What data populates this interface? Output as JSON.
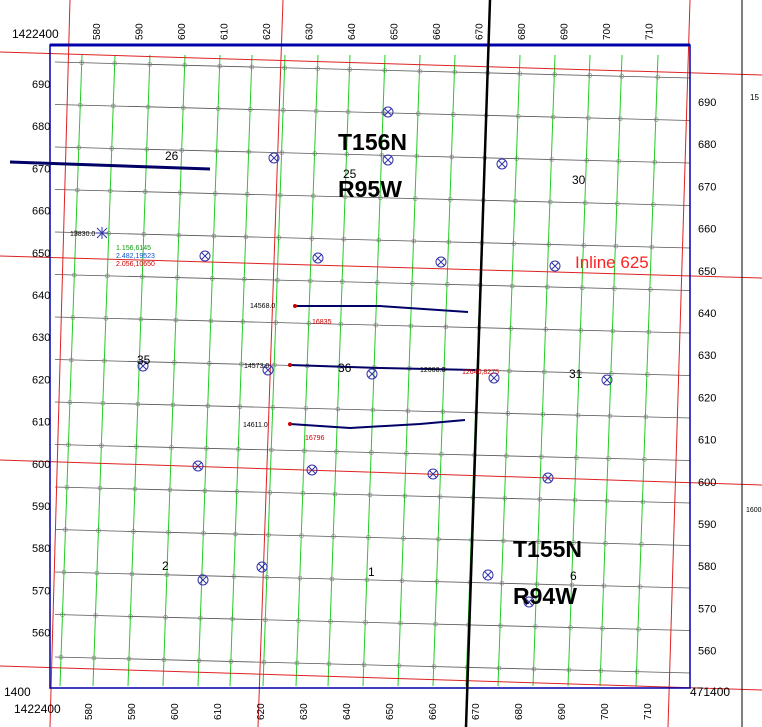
{
  "corner_labels": {
    "top_left": "1422400",
    "bottom_left_y": "1400",
    "bottom_left_x": "1422400",
    "bottom_right": "471400"
  },
  "top_ticks": [
    "580",
    "590",
    "600",
    "610",
    "620",
    "630",
    "640",
    "650",
    "660",
    "670",
    "680",
    "690",
    "700",
    "710"
  ],
  "bottom_ticks": [
    "580",
    "590",
    "600",
    "610",
    "620",
    "630",
    "640",
    "650",
    "660",
    "670",
    "680",
    "690",
    "700",
    "710"
  ],
  "left_ticks": [
    "690",
    "680",
    "670",
    "660",
    "650",
    "640",
    "630",
    "620",
    "610",
    "600",
    "590",
    "580",
    "570",
    "560"
  ],
  "right_ticks": [
    "690",
    "680",
    "670",
    "660",
    "650",
    "640",
    "630",
    "620",
    "610",
    "600",
    "590",
    "580",
    "570",
    "560"
  ],
  "edge_fragments": {
    "right_top": "15",
    "right_middle": "1600"
  },
  "sections": [
    "26",
    "25",
    "30",
    "35",
    "36",
    "31",
    "2",
    "1",
    "6"
  ],
  "townships": [
    {
      "t": "T156N",
      "r": "R95W"
    },
    {
      "t": "T155N",
      "r": "R94W"
    }
  ],
  "inline_label": "Inline 625",
  "well_labels": {
    "w1": "13830.0",
    "w1_a": "1.156,6145",
    "w1_b": "2.482,19523",
    "w1_c": "2.056,10650",
    "h1_start": "14568.0",
    "h1_end": "16835",
    "h2_start": "14573.0",
    "h2_mid": "12668.0",
    "h2_end": "12640,8275",
    "h3_start": "14611.0",
    "h3_end": "16796"
  },
  "colors": {
    "axis": "#0000aa",
    "gridline": "#555555",
    "crossline": "#22cc22",
    "section_line": "#dd2222",
    "inline_text": "#ff2222",
    "well_path": "#000066",
    "well_symbol": "#3333aa",
    "township_text": "#000000"
  }
}
